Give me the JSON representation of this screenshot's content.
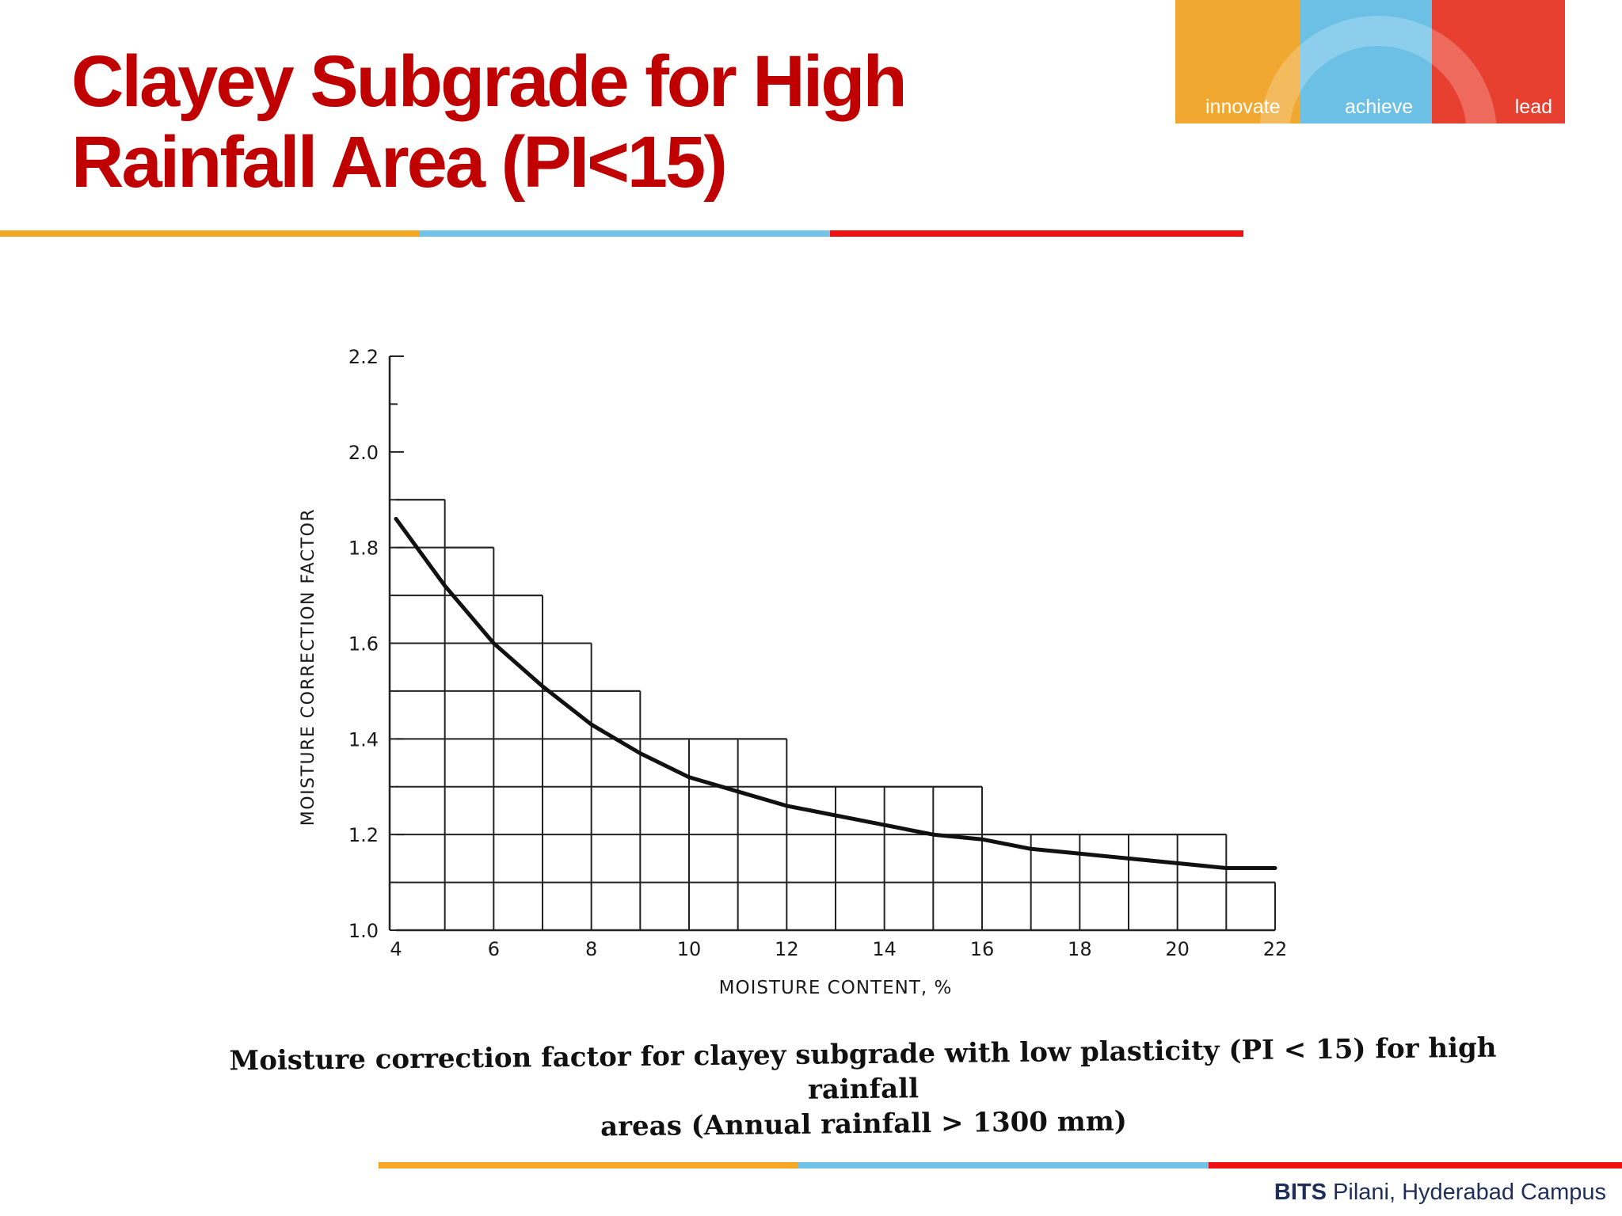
{
  "slide": {
    "title_line1": "Clayey Subgrade for High",
    "title_line2": "Rainfall Area (PI<15)",
    "title_color": "#c00000",
    "brand": [
      {
        "label": "innovate",
        "color": "#f0a830"
      },
      {
        "label": "achieve",
        "color": "#6cc0e6"
      },
      {
        "label": "lead",
        "color": "#e84030"
      }
    ],
    "accent_colors": [
      "#f5a623",
      "#72c3ea",
      "#ee1111"
    ],
    "caption_line1": "Moisture correction factor for clayey subgrade with low plasticity (PI < 15) for high rainfall",
    "caption_line2": "areas (Annual rainfall  > 1300 mm)",
    "footer_bold": "BITS",
    "footer_rest": " Pilani, Hyderabad Campus"
  },
  "chart_data": {
    "type": "line",
    "title": "",
    "xlabel": "MOISTURE CONTENT, %",
    "ylabel": "MOISTURE CORRECTION FACTOR",
    "xlim": [
      4,
      22
    ],
    "ylim": [
      1.0,
      2.2
    ],
    "x_ticks": [
      4,
      6,
      8,
      10,
      12,
      14,
      16,
      18,
      20,
      22
    ],
    "y_ticks": [
      1.0,
      1.2,
      1.4,
      1.6,
      1.8,
      2.0,
      2.2
    ],
    "x_tick_labels": [
      "4",
      "6",
      "8",
      "10",
      "12",
      "14",
      "16",
      "18",
      "20",
      "22"
    ],
    "y_tick_labels": [
      "1.0",
      "1.2",
      "1.4",
      "1.6",
      "1.8",
      "2.0",
      "2.2"
    ],
    "series": [
      {
        "name": "Moisture correction factor",
        "x": [
          4,
          5,
          6,
          7,
          8,
          9,
          10,
          11,
          12,
          13,
          14,
          15,
          16,
          17,
          18,
          19,
          20,
          21,
          22
        ],
        "values": [
          1.86,
          1.72,
          1.6,
          1.51,
          1.43,
          1.37,
          1.32,
          1.29,
          1.26,
          1.24,
          1.22,
          1.2,
          1.19,
          1.17,
          1.16,
          1.15,
          1.14,
          1.13,
          1.13
        ]
      }
    ],
    "grid_steps": [
      {
        "x0": 4,
        "x1": 5,
        "y": 1.9
      },
      {
        "x0": 5,
        "x1": 6,
        "y": 1.8
      },
      {
        "x0": 6,
        "x1": 7,
        "y": 1.7
      },
      {
        "x0": 7,
        "x1": 8,
        "y": 1.6
      },
      {
        "x0": 8,
        "x1": 9,
        "y": 1.5
      },
      {
        "x0": 9,
        "x1": 12,
        "y": 1.4
      },
      {
        "x0": 12,
        "x1": 16,
        "y": 1.3
      },
      {
        "x0": 16,
        "x1": 21,
        "y": 1.2
      },
      {
        "x0": 21,
        "x1": 22,
        "y": 1.1
      }
    ]
  }
}
